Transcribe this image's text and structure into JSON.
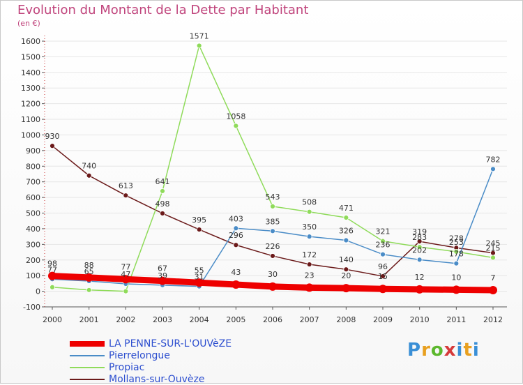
{
  "chart_data": {
    "type": "line",
    "title": "Evolution du Montant de la Dette par Habitant",
    "unit": "(en €)",
    "xlabel": "",
    "ylabel": "",
    "ylim": [
      -100,
      1600
    ],
    "yticks": [
      -100,
      0,
      100,
      200,
      300,
      400,
      500,
      600,
      700,
      800,
      900,
      1000,
      1100,
      1200,
      1300,
      1400,
      1500,
      1600
    ],
    "categories": [
      "2000",
      "2001",
      "2002",
      "2003",
      "2004",
      "2005",
      "2006",
      "2007",
      "2008",
      "2009",
      "2010",
      "2011",
      "2012"
    ],
    "series": [
      {
        "name": "LA PENNE-SUR-L'OUVèZE",
        "color": "#ee0000",
        "values": [
          98,
          88,
          77,
          67,
          55,
          43,
          30,
          23,
          20,
          15,
          12,
          10,
          7
        ],
        "labels": [
          "98",
          "88",
          "77",
          "67",
          "55",
          "43",
          "30",
          "23",
          "20",
          "15",
          "12",
          "10",
          "7"
        ]
      },
      {
        "name": "Pierrelongue",
        "color": "#4a8cc7",
        "values": [
          77,
          65,
          47,
          39,
          31,
          403,
          385,
          350,
          326,
          236,
          202,
          178,
          782
        ],
        "labels": [
          "77",
          "65",
          "47",
          "39",
          "31",
          "403",
          "385",
          "350",
          "326",
          "236",
          "202",
          "178",
          "782"
        ]
      },
      {
        "name": "Propiac",
        "color": "#8fdb5a",
        "values": [
          26,
          8,
          0,
          641,
          1571,
          1058,
          543,
          508,
          471,
          321,
          283,
          253,
          215
        ],
        "labels": [
          "",
          "",
          "",
          "641",
          "1571",
          "1058",
          "543",
          "508",
          "471",
          "321",
          "283",
          "253",
          "215"
        ]
      },
      {
        "name": "Mollans-sur-Ouvèze",
        "color": "#6b1a1a",
        "values": [
          930,
          740,
          613,
          498,
          395,
          296,
          226,
          172,
          140,
          96,
          319,
          278,
          245
        ],
        "labels": [
          "930",
          "740",
          "613",
          "498",
          "395",
          "296",
          "226",
          "172",
          "140",
          "96",
          "319",
          "278",
          "245"
        ]
      }
    ]
  }
}
